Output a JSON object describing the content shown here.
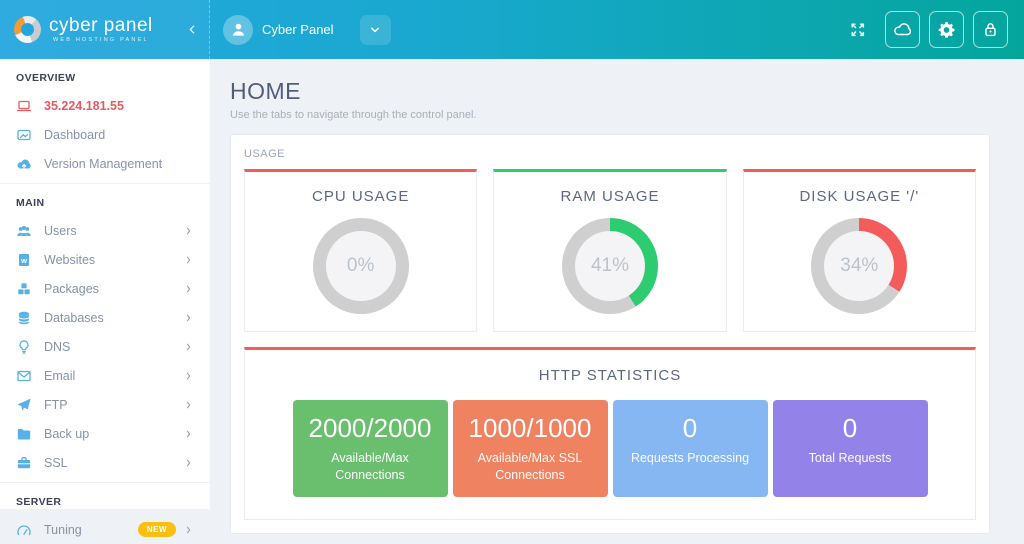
{
  "header": {
    "logo": {
      "title": "cyber panel",
      "subtitle": "WEB HOSTING PANEL",
      "logo_icon": "cyberpanel-swirl-logo"
    },
    "collapse_icon": "chevron-left-icon",
    "user": {
      "name": "Cyber Panel",
      "avatar_icon": "user-avatar-icon",
      "dropdown_icon": "chevron-down-icon"
    },
    "actions": [
      {
        "icon": "expand-icon",
        "style": "plain"
      },
      {
        "icon": "cloud-icon",
        "style": "button"
      },
      {
        "icon": "gear-icon",
        "style": "button"
      },
      {
        "icon": "lock-icon",
        "style": "button"
      }
    ],
    "colors": {
      "gradient_start": "#25a7e0",
      "gradient_end": "#04a69c"
    }
  },
  "sidebar": {
    "sections": [
      {
        "title": "OVERVIEW",
        "items": [
          {
            "label": "35.224.181.55",
            "icon": "laptop-icon",
            "active": true,
            "chevron": false
          },
          {
            "label": "Dashboard",
            "icon": "dashboard-icon",
            "active": false,
            "chevron": false
          },
          {
            "label": "Version Management",
            "icon": "cloud-upload-icon",
            "active": false,
            "chevron": false
          }
        ]
      },
      {
        "title": "MAIN",
        "items": [
          {
            "label": "Users",
            "icon": "users-icon",
            "active": false,
            "chevron": true
          },
          {
            "label": "Websites",
            "icon": "website-document-icon",
            "active": false,
            "chevron": true
          },
          {
            "label": "Packages",
            "icon": "packages-icon",
            "active": false,
            "chevron": true
          },
          {
            "label": "Databases",
            "icon": "database-icon",
            "active": false,
            "chevron": true
          },
          {
            "label": "DNS",
            "icon": "lightbulb-icon",
            "active": false,
            "chevron": true
          },
          {
            "label": "Email",
            "icon": "envelope-icon",
            "active": false,
            "chevron": true
          },
          {
            "label": "FTP",
            "icon": "paper-plane-icon",
            "active": false,
            "chevron": true
          },
          {
            "label": "Back up",
            "icon": "folder-icon",
            "active": false,
            "chevron": true
          },
          {
            "label": "SSL",
            "icon": "briefcase-icon",
            "active": false,
            "chevron": true
          }
        ]
      },
      {
        "title": "SERVER",
        "items": [
          {
            "label": "Tuning",
            "icon": "speedometer-icon",
            "active": false,
            "chevron": true,
            "badge": "NEW"
          }
        ]
      }
    ],
    "colors": {
      "icon_blue": "#57b0e6",
      "active_red": "#e8595f",
      "badge_yellow": "#fbbf10"
    }
  },
  "main": {
    "page_title": "HOME",
    "page_subtitle": "Use the tabs to navigate through the control panel.",
    "usage_panel": {
      "title": "USAGE",
      "gauges": [
        {
          "title": "CPU USAGE",
          "percent": 0,
          "display": "0%",
          "accent": "#f45b5b"
        },
        {
          "title": "RAM USAGE",
          "percent": 41,
          "display": "41%",
          "accent": "#2ecc71"
        },
        {
          "title": "DISK USAGE '/'",
          "percent": 34,
          "display": "34%",
          "accent": "#f45b5b"
        }
      ],
      "gauge_track_color": "#cfcfcf"
    },
    "http_panel": {
      "title": "HTTP STATISTICS",
      "accent": "#f45b5b",
      "stats": [
        {
          "value": "2000/2000",
          "label": "Available/Max Connections",
          "color": "#6abf6e"
        },
        {
          "value": "1000/1000",
          "label": "Available/Max SSL Connections",
          "color": "#ef8260"
        },
        {
          "value": "0",
          "label": "Requests Processing",
          "color": "#86b7f3"
        },
        {
          "value": "0",
          "label": "Total Requests",
          "color": "#9383e9"
        }
      ]
    }
  }
}
